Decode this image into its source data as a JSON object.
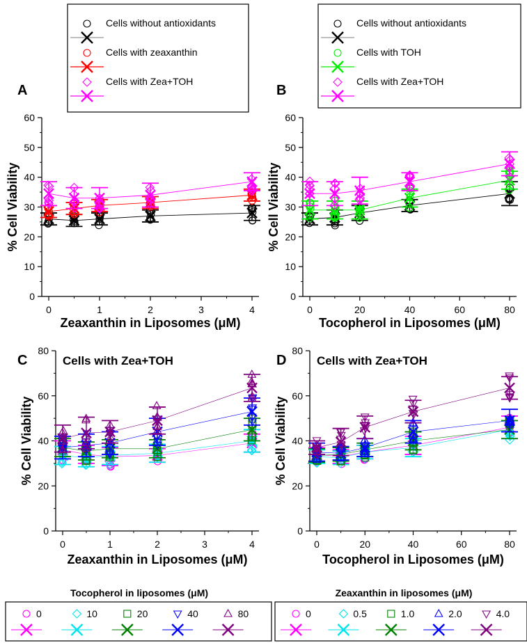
{
  "chart_data": [
    {
      "panel": "A",
      "type": "scatter",
      "xlabel": "Zeaxanthin in Liposomes (μM)",
      "ylabel": "% Cell Viability",
      "xlim": [
        0,
        4
      ],
      "ylim": [
        0,
        60
      ],
      "xticks": [
        0,
        1,
        2,
        3,
        4
      ],
      "yticks": [
        0,
        10,
        20,
        30,
        40,
        50,
        60
      ],
      "x": [
        0,
        0.5,
        1,
        2,
        4
      ],
      "legend": [
        "Cells without antioxidants",
        "Cells with zeaxanthin",
        "Cells with Zea+TOH"
      ],
      "series": [
        {
          "name": "Cells without antioxidants",
          "color": "#000000",
          "mean": [
            26,
            25.5,
            26,
            27,
            28
          ],
          "err": [
            2,
            2,
            2,
            2,
            2.5
          ]
        },
        {
          "name": "Cells with zeaxanthin",
          "color": "#ff0000",
          "mean": [
            28.5,
            29.5,
            30.5,
            31.5,
            34
          ],
          "err": [
            2,
            2,
            2,
            2,
            2
          ]
        },
        {
          "name": "Cells with Zea+TOH",
          "color": "#ff00ff",
          "mean": [
            34.5,
            33,
            33,
            34,
            38.5
          ],
          "err": [
            4,
            3.5,
            3.5,
            4,
            3
          ]
        }
      ]
    },
    {
      "panel": "B",
      "type": "scatter",
      "xlabel": "Tocopherol in Liposomes (μM)",
      "ylabel": "% Cell Viability",
      "xlim": [
        0,
        80
      ],
      "ylim": [
        0,
        60
      ],
      "xticks": [
        0,
        20,
        40,
        60,
        80
      ],
      "yticks": [
        0,
        10,
        20,
        30,
        40,
        50,
        60
      ],
      "x": [
        0,
        10,
        20,
        40,
        80
      ],
      "legend": [
        "Cells without antioxidants",
        "Cells with TOH",
        "Cells with Zea+TOH"
      ],
      "series": [
        {
          "name": "Cells without antioxidants",
          "color": "#000000",
          "mean": [
            26,
            26.5,
            28,
            30.5,
            34.5
          ],
          "err": [
            2,
            2.5,
            2.5,
            2,
            4
          ]
        },
        {
          "name": "Cells with TOH",
          "color": "#00ee00",
          "mean": [
            29,
            29,
            29,
            33,
            39
          ],
          "err": [
            3,
            3,
            3,
            3,
            3
          ]
        },
        {
          "name": "Cells with Zea+TOH",
          "color": "#ff00ff",
          "mean": [
            34.5,
            34.5,
            35.5,
            38.5,
            44.5
          ],
          "err": [
            4,
            4,
            4.5,
            3,
            4
          ]
        }
      ]
    },
    {
      "panel": "C",
      "type": "scatter",
      "annotation": "Cells with Zea+TOH",
      "xlabel": "Zeaxanthin in Liposomes (μM)",
      "ylabel": "% Cell Viability",
      "xlim": [
        0,
        4
      ],
      "ylim": [
        0,
        80
      ],
      "xticks": [
        0,
        1,
        2,
        3,
        4
      ],
      "yticks": [
        0,
        20,
        40,
        60,
        80
      ],
      "x": [
        0,
        0.5,
        1,
        2,
        4
      ],
      "legend_title": "Tocopherol in liposomes (μM)",
      "series": [
        {
          "name": "0",
          "marker": "circle",
          "color": "#ff00ff",
          "mean": [
            36,
            34,
            33,
            33.5,
            39
          ],
          "err": [
            4,
            4,
            4,
            3,
            4
          ]
        },
        {
          "name": "10",
          "marker": "diamond",
          "color": "#00e5ee",
          "mean": [
            33.5,
            32.5,
            33.5,
            34.5,
            40
          ],
          "err": [
            4,
            4,
            4,
            4,
            5
          ]
        },
        {
          "name": "20",
          "marker": "square",
          "color": "#008000",
          "mean": [
            37,
            35.5,
            36.5,
            36.5,
            45
          ],
          "err": [
            4,
            4,
            4,
            4,
            5
          ]
        },
        {
          "name": "40",
          "marker": "triangle-down",
          "color": "#0000ff",
          "mean": [
            37,
            38,
            39,
            44,
            53
          ],
          "err": [
            5,
            5,
            5,
            6,
            6
          ]
        },
        {
          "name": "80",
          "marker": "triangle-up",
          "color": "#800080",
          "mean": [
            41,
            43.5,
            44,
            49,
            63.5
          ],
          "err": [
            6,
            7,
            5,
            6,
            6
          ]
        }
      ]
    },
    {
      "panel": "D",
      "type": "scatter",
      "annotation": "Cells with Zea+TOH",
      "xlabel": "Tocopherol in Liposomes (μM)",
      "ylabel": "% Cell Viability",
      "xlim": [
        0,
        80
      ],
      "ylim": [
        0,
        80
      ],
      "xticks": [
        0,
        20,
        40,
        60,
        80
      ],
      "yticks": [
        0,
        20,
        40,
        60,
        80
      ],
      "x": [
        0,
        10,
        20,
        40,
        80
      ],
      "legend_title": "Zeaxanthin in liposomes (μM)",
      "series": [
        {
          "name": "0",
          "marker": "circle",
          "color": "#ff00ff",
          "mean": [
            34,
            33,
            35,
            38,
            46
          ],
          "err": [
            3,
            3,
            3,
            4,
            5
          ]
        },
        {
          "name": "0.5",
          "marker": "diamond",
          "color": "#00e5ee",
          "mean": [
            33,
            32.5,
            35,
            37,
            45
          ],
          "err": [
            3,
            3,
            3,
            4,
            4
          ]
        },
        {
          "name": "1.0",
          "marker": "square",
          "color": "#008000",
          "mean": [
            33.5,
            34,
            36,
            40,
            45
          ],
          "err": [
            3,
            3,
            3,
            4,
            4
          ]
        },
        {
          "name": "2.0",
          "marker": "triangle-up",
          "color": "#0000ff",
          "mean": [
            35,
            34.5,
            37,
            44,
            49
          ],
          "err": [
            4,
            3,
            4,
            5,
            5
          ]
        },
        {
          "name": "4.0",
          "marker": "triangle-down",
          "color": "#800080",
          "mean": [
            37,
            39.5,
            46,
            53,
            63.5
          ],
          "err": [
            3,
            6,
            5,
            5,
            5
          ]
        }
      ]
    }
  ]
}
